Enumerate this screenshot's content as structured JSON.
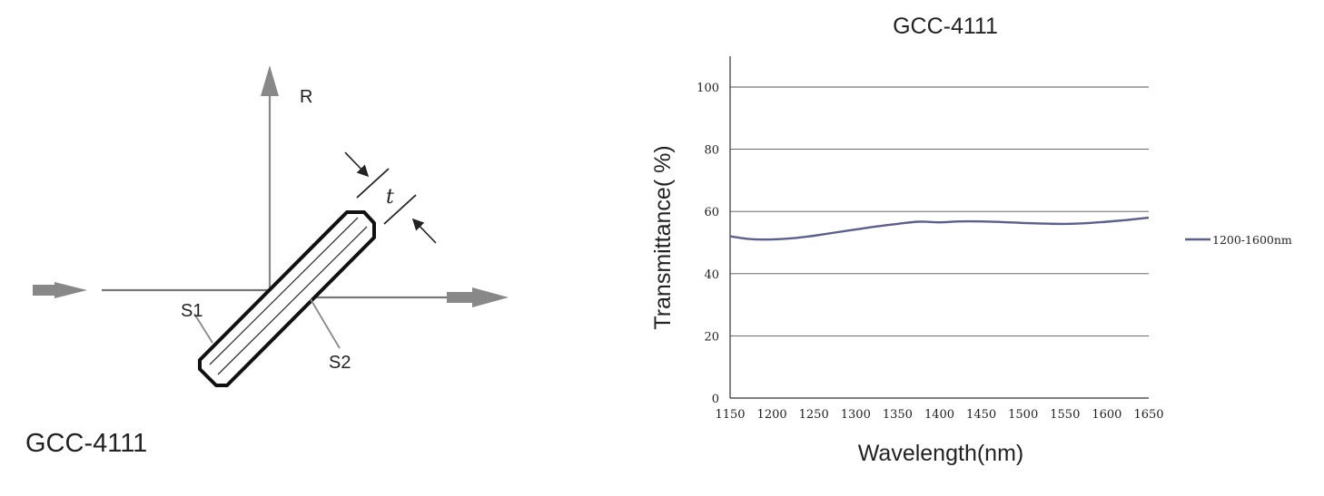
{
  "diagram": {
    "caption": "GCC-4111",
    "labels": {
      "reflected": "R",
      "surface1": "S1",
      "surface2": "S2",
      "thickness": "t"
    }
  },
  "chart_data": {
    "type": "line",
    "title": "GCC-4111",
    "xlabel": "Wavelength(nm)",
    "ylabel": "Transmittance( %)",
    "xlim": [
      1150,
      1650
    ],
    "ylim": [
      0,
      100
    ],
    "xticks": [
      1150,
      1200,
      1250,
      1300,
      1350,
      1400,
      1450,
      1500,
      1550,
      1600,
      1650
    ],
    "yticks": [
      0,
      20,
      40,
      60,
      80,
      100
    ],
    "grid": "horizontal",
    "legend": "right",
    "series": [
      {
        "name": "1200-1600nm",
        "color": "#5a5f8e",
        "x": [
          1150,
          1175,
          1200,
          1225,
          1250,
          1275,
          1300,
          1325,
          1350,
          1375,
          1400,
          1425,
          1450,
          1475,
          1500,
          1525,
          1550,
          1575,
          1600,
          1625,
          1650
        ],
        "y": [
          52.0,
          51.1,
          51.0,
          51.4,
          52.2,
          53.2,
          54.2,
          55.2,
          56.0,
          56.7,
          56.5,
          56.8,
          56.8,
          56.6,
          56.3,
          56.1,
          56.0,
          56.2,
          56.7,
          57.3,
          58.0
        ]
      }
    ]
  }
}
